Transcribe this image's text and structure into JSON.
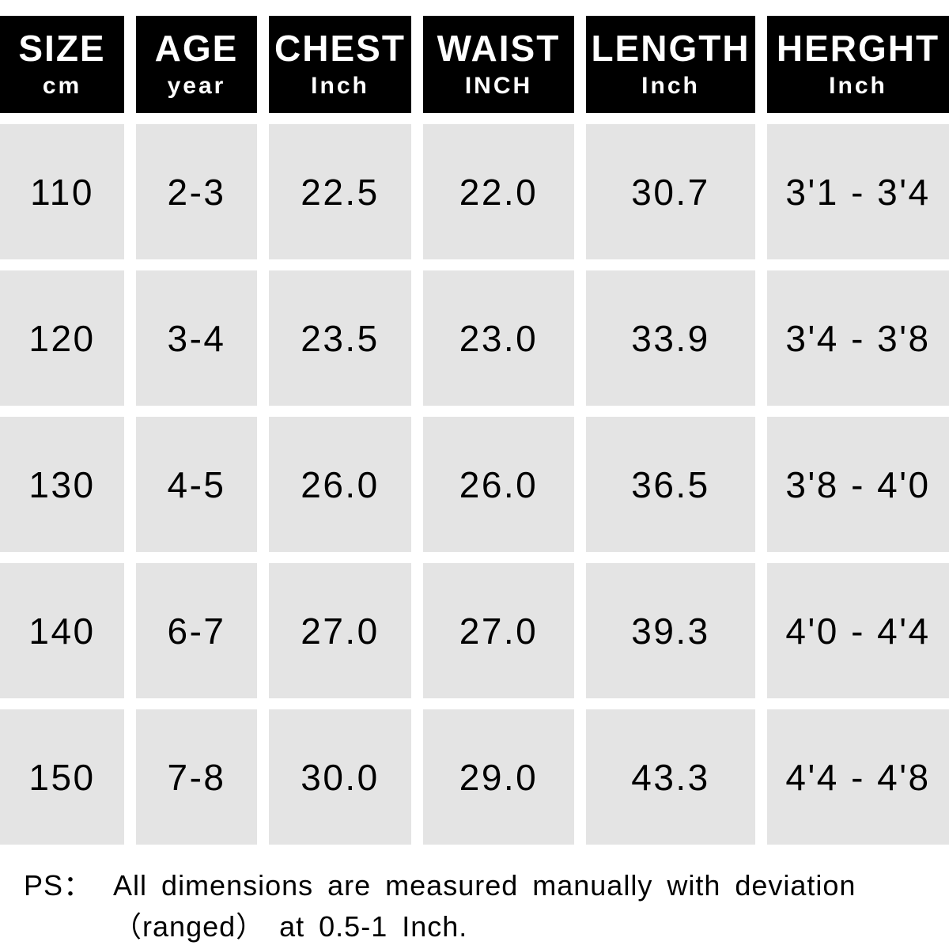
{
  "table": {
    "columns": [
      {
        "label": "SIZE",
        "unit": "cm"
      },
      {
        "label": "AGE",
        "unit": "year"
      },
      {
        "label": "CHEST",
        "unit": "Inch"
      },
      {
        "label": "WAIST",
        "unit": "INCH"
      },
      {
        "label": "LENGTH",
        "unit": "Inch"
      },
      {
        "label": "HERGHT",
        "unit": "Inch"
      }
    ],
    "rows": [
      [
        "110",
        "2-3",
        "22.5",
        "22.0",
        "30.7",
        "3'1 - 3'4"
      ],
      [
        "120",
        "3-4",
        "23.5",
        "23.0",
        "33.9",
        "3'4 - 3'8"
      ],
      [
        "130",
        "4-5",
        "26.0",
        "26.0",
        "36.5",
        "3'8 - 4'0"
      ],
      [
        "140",
        "6-7",
        "27.0",
        "27.0",
        "39.3",
        "4'0 - 4'4"
      ],
      [
        "150",
        "7-8",
        "30.0",
        "29.0",
        "43.3",
        "4'4 - 4'8"
      ]
    ]
  },
  "note": {
    "label": "PS：",
    "line1": "All dimensions are measured manually with deviation",
    "line2": "（ranged） at 0.5-1 Inch."
  },
  "colors": {
    "header_bg": "#000000",
    "header_text": "#ffffff",
    "cell_bg": "#e4e4e4",
    "cell_text": "#000000",
    "page_bg": "#ffffff"
  },
  "chart_data": {
    "type": "table",
    "title": "Kids size chart",
    "columns": [
      "SIZE cm",
      "AGE year",
      "CHEST Inch",
      "WAIST INCH",
      "LENGTH Inch",
      "HERGHT Inch"
    ],
    "rows": [
      [
        "110",
        "2-3",
        "22.5",
        "22.0",
        "30.7",
        "3'1 - 3'4"
      ],
      [
        "120",
        "3-4",
        "23.5",
        "23.0",
        "33.9",
        "3'4 - 3'8"
      ],
      [
        "130",
        "4-5",
        "26.0",
        "26.0",
        "36.5",
        "3'8 - 4'0"
      ],
      [
        "140",
        "6-7",
        "27.0",
        "27.0",
        "39.3",
        "4'0 - 4'4"
      ],
      [
        "150",
        "7-8",
        "30.0",
        "29.0",
        "43.3",
        "4'4 - 4'8"
      ]
    ],
    "note": "PS： All dimensions are measured manually with deviation （ranged） at 0.5-1 Inch."
  }
}
